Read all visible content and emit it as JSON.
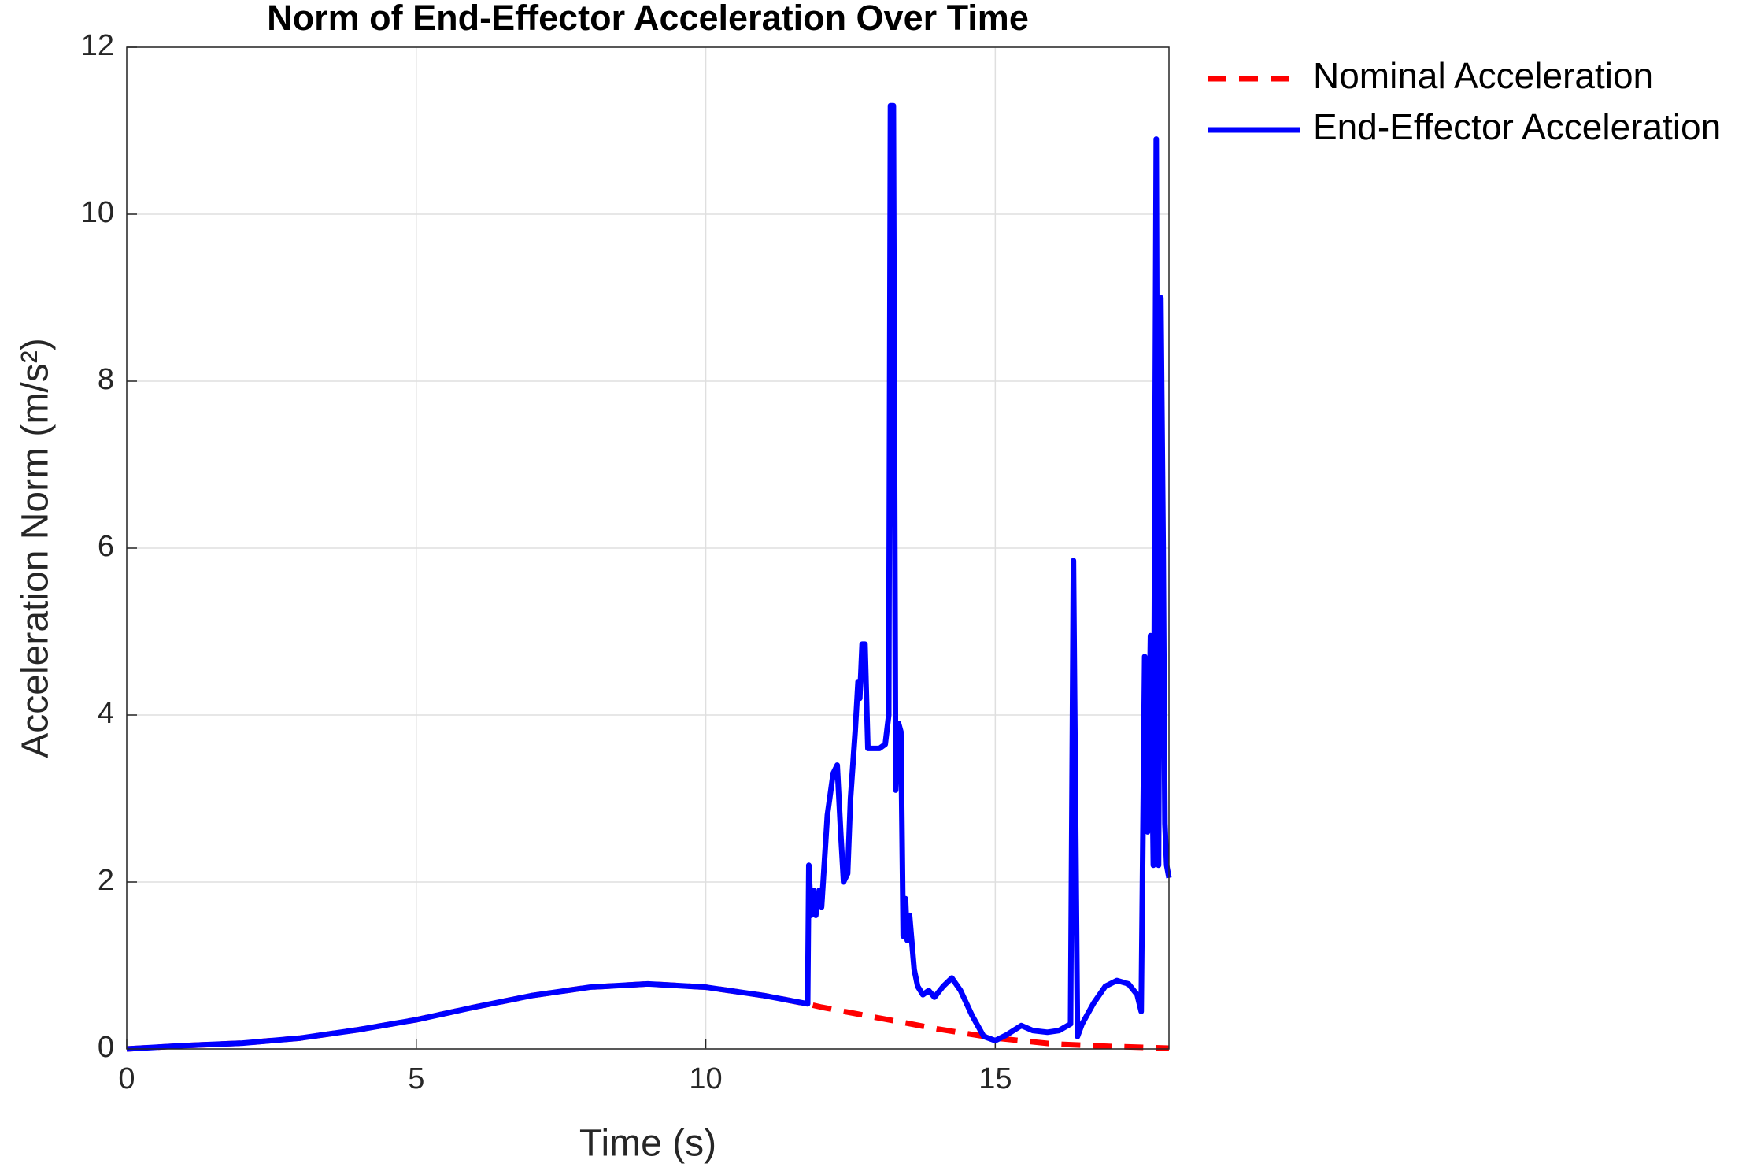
{
  "chart_data": {
    "type": "line",
    "title": "Norm of End-Effector Acceleration Over Time",
    "xlabel": "Time (s)",
    "ylabel": "Acceleration Norm (m/s²)",
    "xlim": [
      0,
      18
    ],
    "xticks": [
      0,
      5,
      10,
      15
    ],
    "ylim": [
      0,
      12
    ],
    "yticks": [
      0,
      2,
      4,
      6,
      8,
      10,
      12
    ],
    "grid": true,
    "legend": "outside-right",
    "series": [
      {
        "name": "Nominal Acceleration",
        "color": "#ff0000",
        "dash": true,
        "x": [
          0,
          1,
          2,
          3,
          4,
          5,
          6,
          7,
          8,
          9,
          10,
          11,
          11.75,
          12,
          13,
          14,
          15,
          16,
          17,
          18
        ],
        "values": [
          0,
          0.04,
          0.07,
          0.13,
          0.23,
          0.35,
          0.5,
          0.64,
          0.74,
          0.78,
          0.74,
          0.64,
          0.54,
          0.5,
          0.37,
          0.24,
          0.13,
          0.06,
          0.03,
          0.01
        ]
      },
      {
        "name": "End-Effector Acceleration",
        "color": "#0000ff",
        "dash": false,
        "x": [
          0,
          1,
          2,
          3,
          4,
          5,
          6,
          7,
          8,
          9,
          10,
          11,
          11.76,
          11.78,
          11.82,
          11.86,
          11.9,
          11.96,
          12.0,
          12.1,
          12.2,
          12.27,
          12.33,
          12.38,
          12.45,
          12.5,
          12.58,
          12.63,
          12.66,
          12.7,
          12.75,
          12.8,
          12.9,
          13.0,
          13.1,
          13.16,
          13.19,
          13.24,
          13.28,
          13.33,
          13.37,
          13.41,
          13.45,
          13.48,
          13.52,
          13.6,
          13.66,
          13.75,
          13.85,
          13.95,
          14.1,
          14.25,
          14.4,
          14.6,
          14.8,
          15.0,
          15.2,
          15.45,
          15.65,
          15.9,
          16.1,
          16.3,
          16.35,
          16.42,
          16.5,
          16.7,
          16.9,
          17.1,
          17.3,
          17.45,
          17.52,
          17.58,
          17.63,
          17.68,
          17.73,
          17.78,
          17.82,
          17.86,
          17.9,
          17.93,
          17.96,
          18.0
        ],
        "values": [
          0,
          0.04,
          0.07,
          0.13,
          0.23,
          0.35,
          0.5,
          0.64,
          0.74,
          0.78,
          0.74,
          0.64,
          0.54,
          2.2,
          1.6,
          1.9,
          1.6,
          1.9,
          1.7,
          2.8,
          3.3,
          3.4,
          2.6,
          2.0,
          2.1,
          3.0,
          3.8,
          4.4,
          4.2,
          4.85,
          4.85,
          3.6,
          3.6,
          3.6,
          3.65,
          4.0,
          11.3,
          11.3,
          3.1,
          3.9,
          3.8,
          1.35,
          1.8,
          1.3,
          1.6,
          0.95,
          0.75,
          0.65,
          0.7,
          0.62,
          0.75,
          0.85,
          0.7,
          0.4,
          0.15,
          0.1,
          0.17,
          0.28,
          0.22,
          0.2,
          0.22,
          0.3,
          5.85,
          0.15,
          0.3,
          0.55,
          0.75,
          0.82,
          0.78,
          0.65,
          0.45,
          4.7,
          2.6,
          4.95,
          2.2,
          10.9,
          2.2,
          9.0,
          6.0,
          2.7,
          2.2,
          2.05
        ]
      }
    ]
  }
}
